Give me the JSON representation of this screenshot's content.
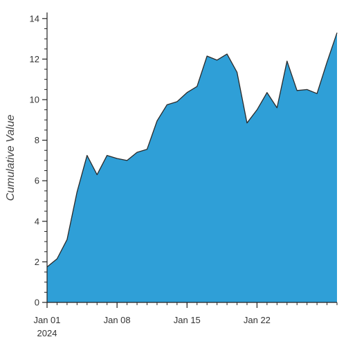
{
  "chart_data": {
    "type": "area",
    "title": "",
    "xlabel": "",
    "ylabel": "Cumulative Value",
    "x_tick_labels": [
      "Jan 01",
      "Jan 08",
      "Jan 15",
      "Jan 22"
    ],
    "x_tick_sublabel": "2024",
    "x_range": [
      "2024-01-01",
      "2024-01-30"
    ],
    "ylim": [
      0,
      14.3
    ],
    "y_ticks": [
      0,
      2,
      4,
      6,
      8,
      10,
      12,
      14
    ],
    "grid": false,
    "series": [
      {
        "x": [
          "2024-01-01",
          "2024-01-02",
          "2024-01-03",
          "2024-01-04",
          "2024-01-05",
          "2024-01-06",
          "2024-01-07",
          "2024-01-08",
          "2024-01-09",
          "2024-01-10",
          "2024-01-11",
          "2024-01-12",
          "2024-01-13",
          "2024-01-14",
          "2024-01-15",
          "2024-01-16",
          "2024-01-17",
          "2024-01-18",
          "2024-01-19",
          "2024-01-20",
          "2024-01-21",
          "2024-01-22",
          "2024-01-23",
          "2024-01-24",
          "2024-01-25",
          "2024-01-26",
          "2024-01-27",
          "2024-01-28",
          "2024-01-29",
          "2024-01-30"
        ],
        "values": [
          1.75,
          2.15,
          3.1,
          5.45,
          7.25,
          6.3,
          7.25,
          7.1,
          7.0,
          7.4,
          7.55,
          8.95,
          9.75,
          9.9,
          10.35,
          10.65,
          12.15,
          11.95,
          12.25,
          11.35,
          8.85,
          9.5,
          10.35,
          9.6,
          11.9,
          10.45,
          10.5,
          10.3,
          11.85,
          13.3
        ],
        "color": "#2f9fd7"
      }
    ]
  }
}
